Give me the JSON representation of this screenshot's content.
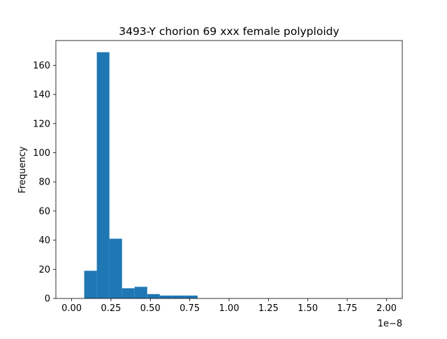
{
  "chart_data": {
    "type": "bar",
    "title": "3493-Y chorion 69 xxx female polyploidy",
    "xlabel": "",
    "ylabel": "Frequency",
    "x_offset_label": "1e−8",
    "xlim": [
      -0.1,
      2.1
    ],
    "ylim": [
      0,
      177
    ],
    "grid": false,
    "legend": "none",
    "bar_color": "#1f77b4",
    "x_ticks": [
      0.0,
      0.25,
      0.5,
      0.75,
      1.0,
      1.25,
      1.5,
      1.75,
      2.0
    ],
    "x_tick_labels": [
      "0.00",
      "0.25",
      "0.50",
      "0.75",
      "1.00",
      "1.25",
      "1.50",
      "1.75",
      "2.00"
    ],
    "y_ticks": [
      0,
      20,
      40,
      60,
      80,
      100,
      120,
      140,
      160
    ],
    "y_tick_labels": [
      "0",
      "20",
      "40",
      "60",
      "80",
      "100",
      "120",
      "140",
      "160"
    ],
    "bins": [
      {
        "x0": 0.08,
        "x1": 0.16,
        "value": 19
      },
      {
        "x0": 0.16,
        "x1": 0.24,
        "value": 169
      },
      {
        "x0": 0.24,
        "x1": 0.32,
        "value": 41
      },
      {
        "x0": 0.32,
        "x1": 0.4,
        "value": 7
      },
      {
        "x0": 0.4,
        "x1": 0.48,
        "value": 8
      },
      {
        "x0": 0.48,
        "x1": 0.56,
        "value": 3
      },
      {
        "x0": 0.56,
        "x1": 0.64,
        "value": 2
      },
      {
        "x0": 0.64,
        "x1": 0.72,
        "value": 2
      },
      {
        "x0": 0.72,
        "x1": 0.8,
        "value": 2
      }
    ]
  }
}
